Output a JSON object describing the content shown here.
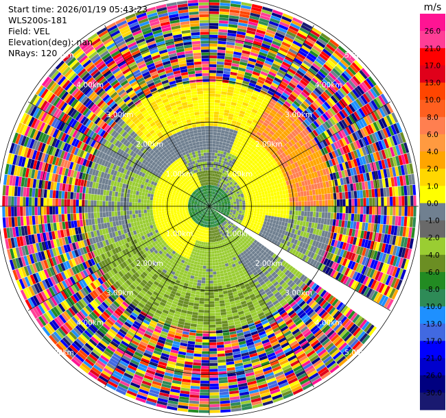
{
  "info": {
    "start_time": "Start time: 2026/01/19 05:43:23",
    "instrument": "WLS200s-181",
    "field": "Field: VEL",
    "elevation": "Elevation(deg): nan",
    "nrays": "NRays: 120"
  },
  "colorbar": {
    "unit": "m/s",
    "ticks": [
      "26.0",
      "21.0",
      "17.0",
      "13.0",
      "10.0",
      "8.0",
      "6.0",
      "4.0",
      "2.0",
      "1.0",
      "0.0",
      "-1.0",
      "-2.0",
      "-4.0",
      "-6.0",
      "-8.0",
      "-10.0",
      "-13.0",
      "-17.0",
      "-21.0",
      "-26.0",
      "-30.0"
    ],
    "colors": [
      "#ff1493",
      "#ff3e96",
      "#ff0000",
      "#e0001a",
      "#ff4500",
      "#ff5f1f",
      "#ff7f50",
      "#ff9a40",
      "#ffa500",
      "#ffd700",
      "#ffff00",
      "#708090",
      "#696969",
      "#9acd32",
      "#6b8e23",
      "#228b22",
      "#2e8b57",
      "#1e90ff",
      "#4169e1",
      "#0000ff",
      "#0000cd",
      "#000080",
      "#191970"
    ]
  },
  "chart_data": {
    "type": "heatmap",
    "field": "VEL",
    "units": "m/s",
    "nrays": 120,
    "range_rings_km": [
      1,
      2,
      3,
      4,
      5
    ],
    "ring_labels": [
      "1.00km",
      "2.00km",
      "3.00km",
      "4.00km",
      "5.00km"
    ],
    "gap_azimuth_deg": 123,
    "valid_range_km": [
      0,
      2.9
    ],
    "near_field_pattern": [
      {
        "region": "center",
        "value_range": [
          -6,
          -4
        ]
      },
      {
        "region": "west inner",
        "value_range": [
          1,
          4
        ]
      },
      {
        "region": "north",
        "value_range": [
          1,
          4
        ]
      },
      {
        "region": "east/northeast outer",
        "value_range": [
          2,
          8
        ]
      },
      {
        "region": "south/southwest",
        "value_range": [
          -2,
          -4
        ]
      },
      {
        "region": "grey band",
        "value_range": [
          -1,
          0
        ]
      }
    ],
    "outer_field": "noise (random velocities across full scale)",
    "colorbar_range": [
      -30,
      26
    ]
  }
}
